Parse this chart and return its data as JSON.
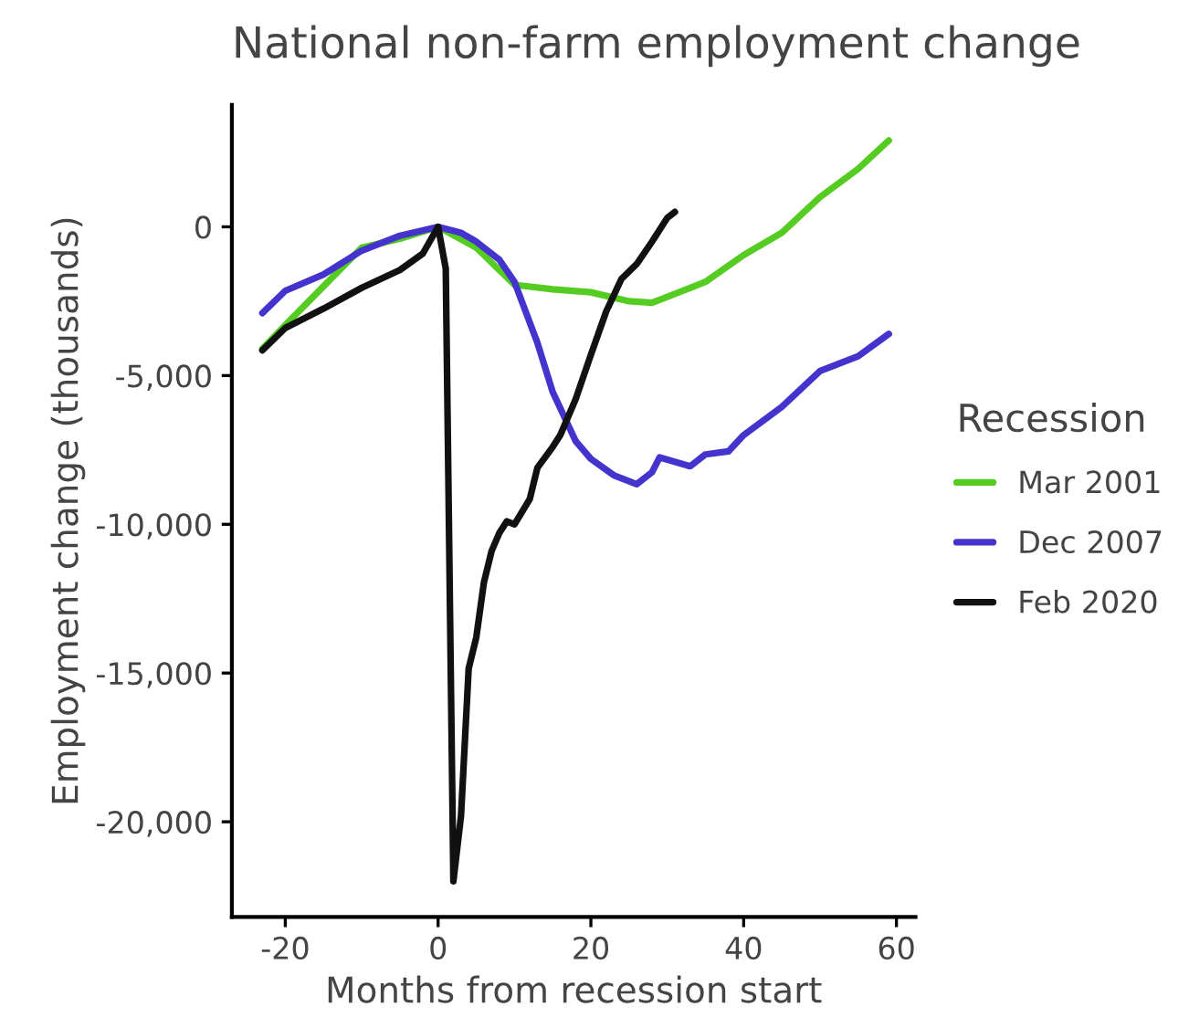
{
  "chart_data": {
    "type": "line",
    "title": "National non-farm employment change",
    "xlabel": "Months from recession start",
    "ylabel": "Employment change (thousands)",
    "legend_title": "Recession",
    "legend": "right",
    "grid": false,
    "marker": "none",
    "line_style": "solid",
    "xlim": [
      -27,
      62.5
    ],
    "ylim": [
      -23200,
      4100
    ],
    "xticks": [
      -20,
      0,
      20,
      40,
      60
    ],
    "yticks": [
      0,
      {
        "value": -5000,
        "label": "-5,000"
      },
      {
        "value": -10000,
        "label": "-10,000"
      },
      {
        "value": -15000,
        "label": "-15,000"
      },
      {
        "value": -20000,
        "label": "-20,000"
      }
    ],
    "series": [
      {
        "name": "Mar 2001",
        "color": "#55cc22",
        "x": [
          -23,
          -20,
          -15,
          -10,
          -5,
          0,
          5,
          10,
          15,
          20,
          25,
          28,
          30,
          35,
          40,
          45,
          50,
          55,
          59
        ],
        "values": [
          -4100,
          -3300,
          -2000,
          -700,
          -400,
          0,
          -700,
          -1950,
          -2100,
          -2200,
          -2500,
          -2550,
          -2350,
          -1850,
          -950,
          -200,
          1000,
          1950,
          2900
        ]
      },
      {
        "name": "Dec 2007",
        "color": "#4433cc",
        "x": [
          -23,
          -20,
          -15,
          -10,
          -5,
          0,
          3,
          5,
          8,
          10,
          13,
          15,
          18,
          20,
          23,
          26,
          28,
          29,
          33,
          35,
          38,
          40,
          45,
          50,
          55,
          59
        ],
        "values": [
          -2900,
          -2150,
          -1600,
          -800,
          -300,
          0,
          -200,
          -500,
          -1100,
          -1850,
          -3900,
          -5550,
          -7200,
          -7800,
          -8350,
          -8650,
          -8250,
          -7750,
          -8050,
          -7650,
          -7550,
          -7000,
          -6050,
          -4850,
          -4350,
          -3600
        ]
      },
      {
        "name": "Feb 2020",
        "color": "#111111",
        "x": [
          -23,
          -20,
          -15,
          -10,
          -5,
          -2,
          0,
          1,
          2,
          3,
          4,
          5,
          6,
          7,
          8,
          9,
          10,
          12,
          13,
          15,
          16,
          18,
          20,
          22,
          24,
          26,
          28,
          30,
          31
        ],
        "values": [
          -4150,
          -3400,
          -2750,
          -2050,
          -1450,
          -900,
          0,
          -1400,
          -22000,
          -19800,
          -14850,
          -13800,
          -11950,
          -10900,
          -10300,
          -9900,
          -10000,
          -9150,
          -8100,
          -7400,
          -7000,
          -5800,
          -4300,
          -2850,
          -1750,
          -1250,
          -500,
          300,
          500
        ]
      }
    ]
  }
}
